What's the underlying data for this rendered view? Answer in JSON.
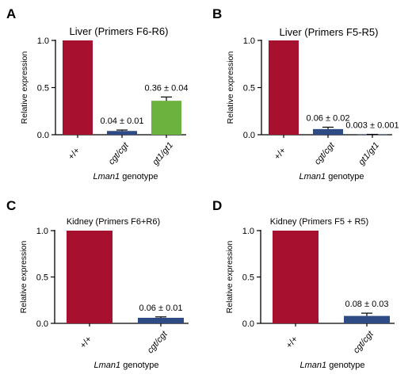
{
  "colors": {
    "wt": "#a8102f",
    "cgt": "#2e4b86",
    "gt1": "#6bb33e",
    "axis": "#000000"
  },
  "chart_data": [
    {
      "type": "bar",
      "panel": "A",
      "title": "Liver (Primers F6-R6)",
      "xlabel_italic": "Lman1",
      "xlabel_rest": " genotype",
      "ylabel": "Relative expression",
      "ylim": [
        0,
        1.0
      ],
      "yticks": [
        "0.0",
        "0.5",
        "1.0"
      ],
      "categories": [
        "+/+",
        "cgt/cgt",
        "gt1/gt1"
      ],
      "italic_categories": [
        false,
        true,
        true
      ],
      "values": [
        1.0,
        0.04,
        0.36
      ],
      "errors": [
        0,
        0.01,
        0.04
      ],
      "labels": [
        "",
        "0.04 ± 0.01",
        "0.36 ± 0.04"
      ],
      "bar_colors": [
        "wt",
        "cgt",
        "gt1"
      ]
    },
    {
      "type": "bar",
      "panel": "B",
      "title": "Liver (Primers F5-R5)",
      "xlabel_italic": "Lman1",
      "xlabel_rest": " genotype",
      "ylabel": "Relative expression",
      "ylim": [
        0,
        1.0
      ],
      "yticks": [
        "0.0",
        "0.5",
        "1.0"
      ],
      "categories": [
        "+/+",
        "cgt/cgt",
        "gt1/gt1"
      ],
      "italic_categories": [
        false,
        true,
        true
      ],
      "values": [
        1.0,
        0.06,
        0.003
      ],
      "errors": [
        0,
        0.02,
        0.001
      ],
      "labels": [
        "",
        "0.06 ± 0.02",
        "0.003 ± 0.001"
      ],
      "bar_colors": [
        "wt",
        "cgt",
        "cgt"
      ]
    },
    {
      "type": "bar",
      "panel": "C",
      "title": "Kidney (Primers F6+R6)",
      "xlabel_italic": "Lman1",
      "xlabel_rest": " genotype",
      "ylabel": "Relative expression",
      "ylim": [
        0,
        1.0
      ],
      "yticks": [
        "0.0",
        "0.5",
        "1.0"
      ],
      "categories": [
        "+/+",
        "cgt/cgt"
      ],
      "italic_categories": [
        false,
        true
      ],
      "values": [
        1.0,
        0.06
      ],
      "errors": [
        0,
        0.01
      ],
      "labels": [
        "",
        "0.06 ± 0.01"
      ],
      "bar_colors": [
        "wt",
        "cgt"
      ]
    },
    {
      "type": "bar",
      "panel": "D",
      "title": "Kidney (Primers F5 + R5)",
      "xlabel_italic": "Lman1",
      "xlabel_rest": " genotype",
      "ylabel": "Relative expression",
      "ylim": [
        0,
        1.0
      ],
      "yticks": [
        "0.0",
        "0.5",
        "1.0"
      ],
      "categories": [
        "+/+",
        "cgt/cgt"
      ],
      "italic_categories": [
        false,
        true
      ],
      "values": [
        1.0,
        0.08
      ],
      "errors": [
        0,
        0.03
      ],
      "labels": [
        "",
        "0.08 ± 0.03"
      ],
      "bar_colors": [
        "wt",
        "cgt"
      ]
    }
  ]
}
